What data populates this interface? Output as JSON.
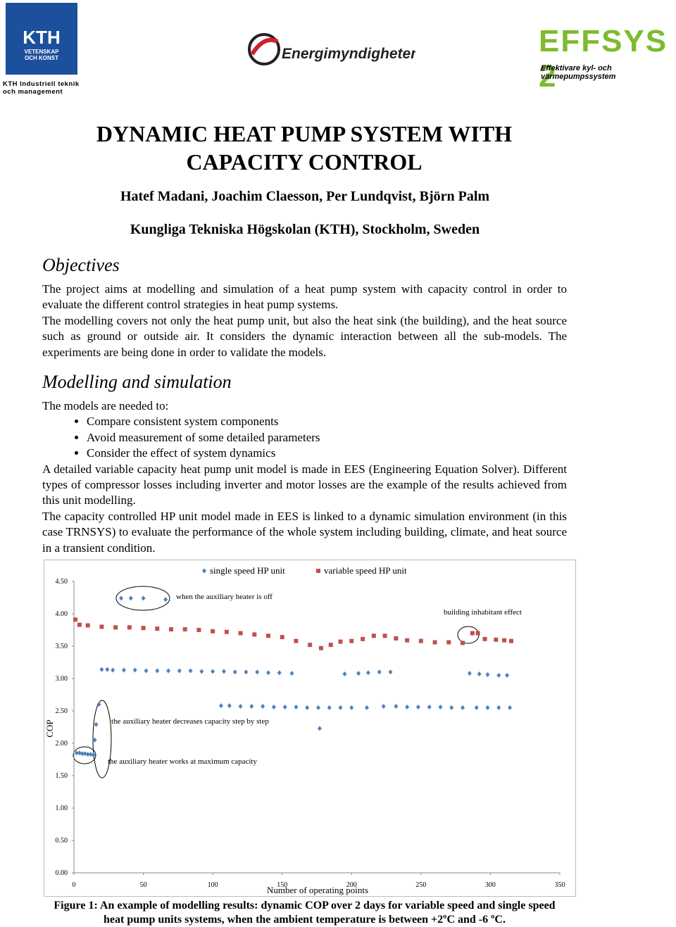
{
  "header": {
    "kth_name": "KTH",
    "kth_motto": [
      "VETENSKAP",
      "OCH KONST"
    ],
    "kth_school": [
      "KTH Industriell teknik",
      "och management"
    ],
    "energi": "Energimyndigheten",
    "effsys": "EFFSYS 2",
    "effsys_tagline": "Effektivare kyl- och värmepumpssystem"
  },
  "title": "DYNAMIC HEAT PUMP SYSTEM WITH CAPACITY CONTROL",
  "authors": "Hatef Madani, Joachim Claesson, Per Lundqvist, Björn Palm",
  "affiliation": "Kungliga Tekniska Högskolan (KTH), Stockholm, Sweden",
  "sections": [
    {
      "heading": "Objectives",
      "paragraphs": [
        "The project aims at modelling and simulation of a heat pump system with capacity control in order to evaluate the different control strategies in heat pump systems.",
        "The modelling covers not only the heat pump unit, but also the heat sink (the building), and the heat source such as ground or outside air. It considers the dynamic interaction between all the sub-models. The experiments are being done in order to validate the models."
      ]
    },
    {
      "heading": "Modelling and simulation",
      "intro": "The models are needed to:",
      "bullets": [
        "Compare consistent system components",
        "Avoid measurement of some detailed parameters",
        "Consider the effect of system dynamics"
      ],
      "paragraphs": [
        "A detailed variable capacity heat pump unit model is made in EES (Engineering Equation Solver). Different types of compressor losses including inverter and motor losses are the example of the results achieved from this unit modelling.",
        "The capacity controlled HP unit model made in EES is linked to a dynamic simulation environment (in this case TRNSYS) to evaluate the performance of the whole system including building, climate, and heat source in a transient condition."
      ]
    }
  ],
  "chart_data": {
    "type": "scatter",
    "x_label": "Number of operating points",
    "y_label": "COP",
    "xlim": [
      0,
      350
    ],
    "xticks": [
      0,
      50,
      100,
      150,
      200,
      250,
      300,
      350
    ],
    "ylim": [
      0,
      4.5
    ],
    "yticks": [
      {
        "value": 0,
        "label": "0.00"
      },
      {
        "value": 0.5,
        "label": "0.50"
      },
      {
        "value": 1,
        "label": "1.00"
      },
      {
        "value": 1.5,
        "label": "1.50"
      },
      {
        "value": 2,
        "label": "2.00"
      },
      {
        "value": 2.5,
        "label": "2.50"
      },
      {
        "value": 3,
        "label": "3.00"
      },
      {
        "value": 3.5,
        "label": "3.50"
      },
      {
        "value": 4,
        "label": "4.00"
      },
      {
        "value": 4.5,
        "label": "4.50"
      }
    ],
    "series": [
      {
        "name": "single speed HP unit",
        "color": "#4f81bd",
        "marker": "diamond",
        "x": [
          2,
          4,
          6,
          8,
          10,
          12,
          14,
          15,
          16,
          18,
          34,
          41,
          50,
          66,
          20,
          24,
          28,
          36,
          44,
          52,
          60,
          68,
          76,
          84,
          92,
          100,
          108,
          116,
          124,
          132,
          140,
          148,
          157,
          106,
          112,
          120,
          128,
          136,
          144,
          152,
          160,
          168,
          176,
          184,
          192,
          200,
          211,
          177,
          195,
          205,
          212,
          220,
          228,
          223,
          232,
          240,
          248,
          256,
          264,
          272,
          280,
          285,
          292,
          298,
          306,
          312,
          290,
          298,
          306,
          314
        ],
        "values": [
          1.85,
          1.85,
          1.84,
          1.84,
          1.83,
          1.83,
          1.82,
          2.05,
          2.29,
          2.6,
          4.24,
          4.24,
          4.24,
          4.22,
          3.14,
          3.14,
          3.13,
          3.13,
          3.13,
          3.12,
          3.12,
          3.12,
          3.12,
          3.12,
          3.11,
          3.11,
          3.11,
          3.1,
          3.1,
          3.1,
          3.09,
          3.09,
          3.08,
          2.58,
          2.58,
          2.57,
          2.57,
          2.57,
          2.56,
          2.56,
          2.56,
          2.55,
          2.55,
          2.55,
          2.55,
          2.55,
          2.55,
          2.23,
          3.07,
          3.08,
          3.09,
          3.1,
          3.1,
          2.57,
          2.57,
          2.56,
          2.56,
          2.56,
          2.56,
          2.55,
          2.55,
          3.08,
          3.07,
          3.06,
          3.05,
          3.05,
          2.55,
          2.55,
          2.55,
          2.55
        ]
      },
      {
        "name": "variable speed HP unit",
        "color": "#c0504d",
        "marker": "square",
        "x": [
          1,
          4,
          10,
          20,
          30,
          40,
          50,
          60,
          70,
          80,
          90,
          100,
          110,
          120,
          130,
          140,
          150,
          160,
          170,
          178,
          185,
          192,
          200,
          208,
          216,
          224,
          232,
          240,
          250,
          260,
          270,
          280,
          287,
          291,
          296,
          304,
          310,
          315
        ],
        "values": [
          3.91,
          3.83,
          3.82,
          3.8,
          3.79,
          3.79,
          3.78,
          3.77,
          3.76,
          3.76,
          3.75,
          3.73,
          3.72,
          3.7,
          3.68,
          3.66,
          3.64,
          3.58,
          3.52,
          3.47,
          3.52,
          3.57,
          3.58,
          3.61,
          3.66,
          3.66,
          3.62,
          3.59,
          3.58,
          3.56,
          3.56,
          3.55,
          3.7,
          3.7,
          3.61,
          3.6,
          3.59,
          3.58
        ]
      }
    ],
    "annotations": [
      "when the auxiliary heater is off",
      "building inhabitant effect",
      "the auxiliary heater decreases capacity step by step",
      "the auxiliary heater works at maximum capacity"
    ]
  },
  "caption": "Figure 1: An example of modelling results: dynamic COP over 2 days for variable speed and single speed heat pump units systems, when the ambient temperature is between +2ºC and -6 ºC."
}
